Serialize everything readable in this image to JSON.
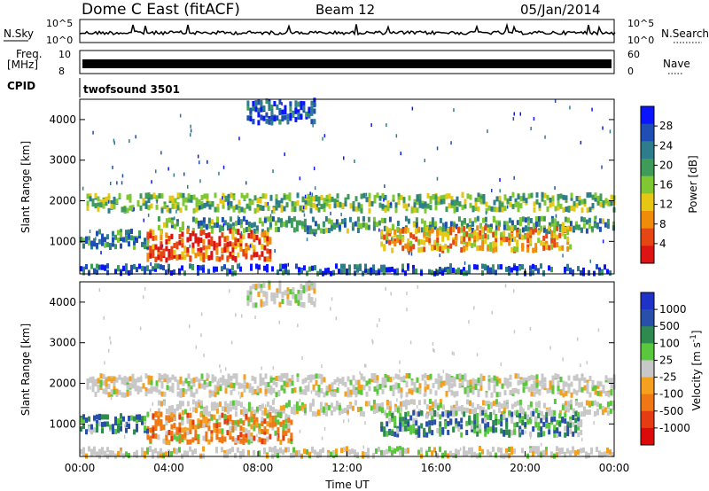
{
  "header": {
    "title": "Dome C East (fitACF)",
    "beam": "Beam 12",
    "date": "05/Jan/2014"
  },
  "strip_labels": {
    "nsky": "N.Sky",
    "nsearch": "N.Search",
    "freq_top": "Freq.",
    "freq_unit": "[MHz]",
    "nave": "Nave",
    "cpid": "CPID",
    "nsky_ticks": [
      "10^5",
      "10^0"
    ],
    "nsearch_ticks": [
      "10^5",
      "10^0"
    ],
    "freq_ticks": [
      "10",
      "8"
    ],
    "nave_ticks": [
      "60",
      "0"
    ],
    "cpid_value": "twofsound 3501"
  },
  "chart_data": [
    {
      "type": "heatmap",
      "name": "power",
      "ylabel": "Slant Range [km]",
      "xlabel": "",
      "x_ticks": [
        "00:00",
        "04:00",
        "08:00",
        "12:00",
        "16:00",
        "20:00",
        "00:00"
      ],
      "xlim_hours": [
        0,
        24
      ],
      "y_ticks": [
        1000,
        2000,
        3000,
        4000
      ],
      "ylim": [
        200,
        4500
      ],
      "colorbar": {
        "label": "Power [dB]",
        "ticks": [
          "4",
          "8",
          "12",
          "16",
          "20",
          "24",
          "28"
        ],
        "colors": [
          "#0a14ff",
          "#1f4fb4",
          "#2e7d8c",
          "#3f9b5a",
          "#7fc832",
          "#e6c814",
          "#f08c0a",
          "#e64614",
          "#dc1414"
        ]
      },
      "bands": [
        {
          "center_km": 1950,
          "thickness_km": 250,
          "x_start": 0.3,
          "x_end": 24,
          "level": 0.45
        },
        {
          "center_km": 1400,
          "thickness_km": 200,
          "x_start": 3.5,
          "x_end": 24,
          "level": 0.35
        },
        {
          "center_km": 900,
          "thickness_km": 450,
          "x_start": 3.0,
          "x_end": 8.5,
          "level": 0.85
        },
        {
          "center_km": 1050,
          "thickness_km": 350,
          "x_start": 13.5,
          "x_end": 22,
          "level": 0.7
        },
        {
          "center_km": 1050,
          "thickness_km": 250,
          "x_start": 0.0,
          "x_end": 3.0,
          "level": 0.3
        },
        {
          "center_km": 300,
          "thickness_km": 120,
          "x_start": 0.0,
          "x_end": 24,
          "level": 0.15
        },
        {
          "center_km": 4200,
          "thickness_km": 350,
          "x_start": 7.5,
          "x_end": 10.5,
          "level": 0.15
        }
      ]
    },
    {
      "type": "heatmap",
      "name": "velocity",
      "ylabel": "Slant Range [km]",
      "xlabel": "Time UT",
      "x_ticks": [
        "00:00",
        "04:00",
        "08:00",
        "12:00",
        "16:00",
        "20:00",
        "00:00"
      ],
      "xlim_hours": [
        0,
        24
      ],
      "y_ticks": [
        1000,
        2000,
        3000,
        4000
      ],
      "ylim": [
        200,
        4500
      ],
      "colorbar": {
        "label": "Velocity [m s",
        "label_sup": "-1",
        "label_end": "]",
        "ticks": [
          "1000",
          "500",
          "100",
          "25",
          "-25",
          "-100",
          "-500",
          "-1000"
        ],
        "colors": [
          "#1e32c8",
          "#2850aa",
          "#2f8a50",
          "#5ac83c",
          "#c8c8c8",
          "#f5a01e",
          "#f07814",
          "#e63c14",
          "#dc0a0a"
        ]
      },
      "bands": [
        {
          "center_km": 1950,
          "thickness_km": 300,
          "x_start": 0.3,
          "x_end": 24,
          "vclass": "grey"
        },
        {
          "center_km": 1400,
          "thickness_km": 200,
          "x_start": 3.5,
          "x_end": 24,
          "vclass": "grey"
        },
        {
          "center_km": 900,
          "thickness_km": 450,
          "x_start": 3.0,
          "x_end": 9.5,
          "vclass": "orange"
        },
        {
          "center_km": 1000,
          "thickness_km": 350,
          "x_start": 13.5,
          "x_end": 22.5,
          "vclass": "green"
        },
        {
          "center_km": 1000,
          "thickness_km": 250,
          "x_start": 0.0,
          "x_end": 3.0,
          "vclass": "green"
        },
        {
          "center_km": 300,
          "thickness_km": 120,
          "x_start": 0.0,
          "x_end": 24,
          "vclass": "grey"
        },
        {
          "center_km": 4200,
          "thickness_km": 350,
          "x_start": 7.5,
          "x_end": 10.5,
          "vclass": "grey"
        }
      ]
    }
  ]
}
